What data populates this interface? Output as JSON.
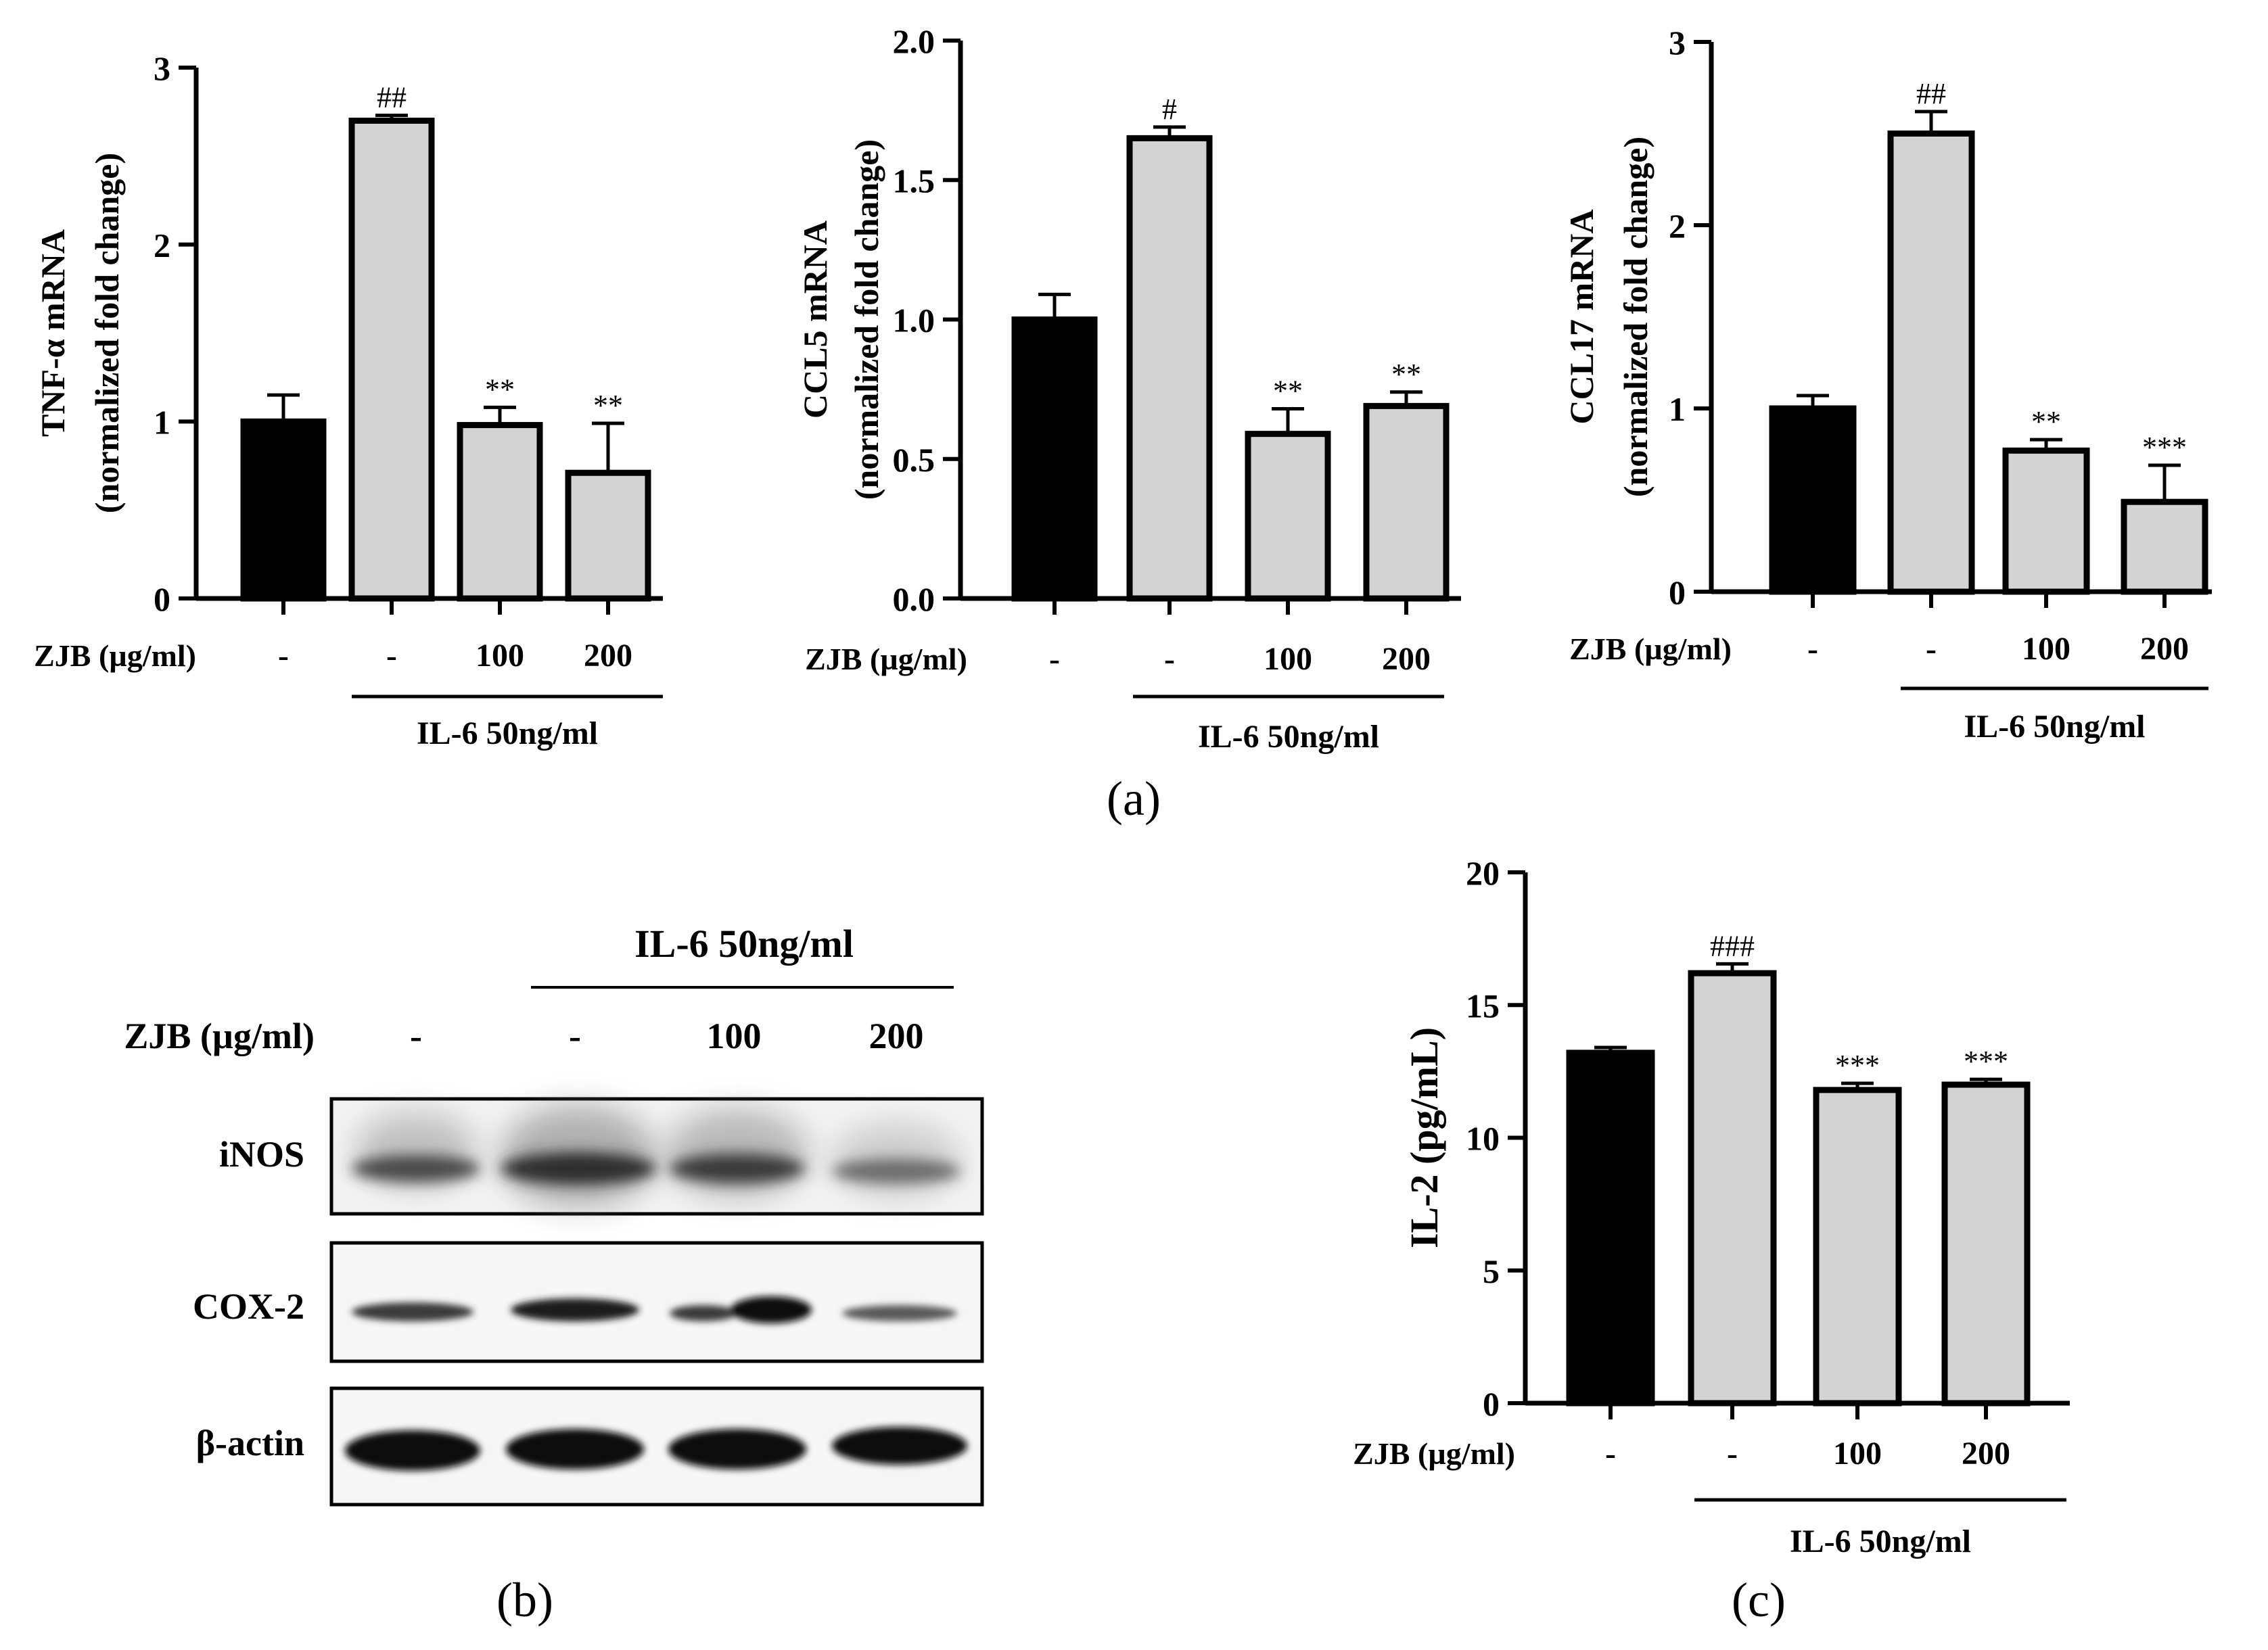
{
  "chart_data": [
    {
      "type": "bar",
      "panel": "a",
      "ylabel": "TNF-α mRNA",
      "ylabel2": "(normalized fold change)",
      "ylim": [
        0,
        3
      ],
      "yticks": [
        "0",
        "1",
        "2",
        "3"
      ],
      "categories": [
        "-",
        "-",
        "100",
        "200"
      ],
      "values": [
        1.0,
        2.7,
        0.98,
        0.71
      ],
      "errors": [
        0.15,
        0.03,
        0.1,
        0.28
      ],
      "annotations": [
        "",
        "##",
        "**",
        "**"
      ],
      "colors": [
        "#000000",
        "#d3d3d3",
        "#d3d3d3",
        "#d3d3d3"
      ],
      "treatment_label": "ZJB (µg/ml)",
      "group_label": "IL-6 50ng/ml"
    },
    {
      "type": "bar",
      "panel": "a",
      "ylabel": "CCL5 mRNA",
      "ylabel2": "(normalized fold change)",
      "ylim": [
        0,
        2.0
      ],
      "yticks": [
        "0.0",
        "0.5",
        "1.0",
        "1.5",
        "2.0"
      ],
      "categories": [
        "-",
        "-",
        "100",
        "200"
      ],
      "values": [
        1.0,
        1.65,
        0.59,
        0.69
      ],
      "errors": [
        0.09,
        0.04,
        0.09,
        0.05
      ],
      "annotations": [
        "",
        "#",
        "**",
        "**"
      ],
      "colors": [
        "#000000",
        "#d3d3d3",
        "#d3d3d3",
        "#d3d3d3"
      ],
      "treatment_label": "ZJB (µg/ml)",
      "group_label": "IL-6 50ng/ml"
    },
    {
      "type": "bar",
      "panel": "a",
      "ylabel": "CCL17 mRNA",
      "ylabel2": "(normalized fold change)",
      "ylim": [
        0,
        3
      ],
      "yticks": [
        "0",
        "1",
        "2",
        "3"
      ],
      "categories": [
        "-",
        "-",
        "100",
        "200"
      ],
      "values": [
        1.0,
        2.5,
        0.77,
        0.49
      ],
      "errors": [
        0.07,
        0.12,
        0.06,
        0.2
      ],
      "annotations": [
        "",
        "##",
        "**",
        "***"
      ],
      "colors": [
        "#000000",
        "#d3d3d3",
        "#d3d3d3",
        "#d3d3d3"
      ],
      "treatment_label": "ZJB (µg/ml)",
      "group_label": "IL-6 50ng/ml"
    },
    {
      "type": "bar",
      "panel": "c",
      "ylabel": "IL-2 (pg/mL)",
      "ylabel2": "",
      "ylim": [
        0,
        20
      ],
      "yticks": [
        "0",
        "5",
        "10",
        "15",
        "20"
      ],
      "categories": [
        "-",
        "-",
        "100",
        "200"
      ],
      "values": [
        13.2,
        16.2,
        11.8,
        12.0
      ],
      "errors": [
        0.2,
        0.35,
        0.25,
        0.2
      ],
      "annotations": [
        "",
        "###",
        "***",
        "***"
      ],
      "colors": [
        "#000000",
        "#d3d3d3",
        "#d3d3d3",
        "#d3d3d3"
      ],
      "treatment_label": "ZJB (µg/ml)",
      "group_label": "IL-6 50ng/ml"
    }
  ],
  "western_blot": {
    "group_label": "IL-6 50ng/ml",
    "treatment_label": "ZJB (µg/ml)",
    "lanes": [
      "-",
      "-",
      "100",
      "200"
    ],
    "proteins": [
      "iNOS",
      "COX-2",
      "β-actin"
    ]
  },
  "panel_labels": {
    "a": "(a)",
    "b": "(b)",
    "c": "(c)"
  }
}
